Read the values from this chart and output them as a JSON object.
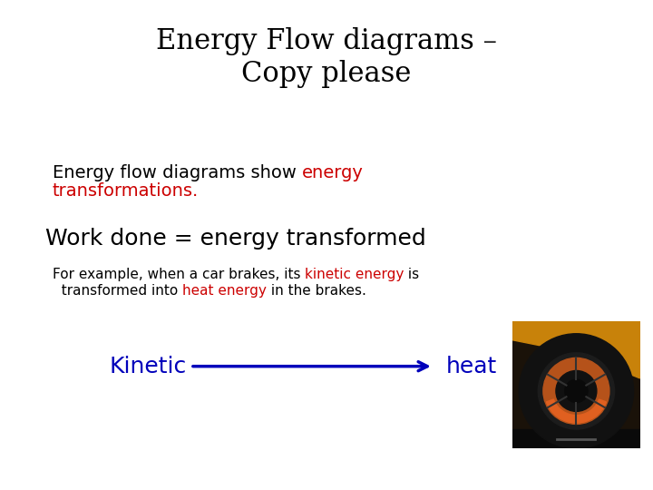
{
  "title_line1": "Energy Flow diagrams –",
  "title_line2": "Copy please",
  "title_fontsize": 22,
  "title_color": "#000000",
  "body_fontsize": 14,
  "work_done_fontsize": 18,
  "example_fontsize": 11,
  "kinetic_text": "Kinetic",
  "heat_text": "heat",
  "arrow_color": "#0000bb",
  "label_color": "#0000bb",
  "label_fontsize": 18,
  "red_color": "#cc0000",
  "black_color": "#000000",
  "background_color": "#ffffff"
}
